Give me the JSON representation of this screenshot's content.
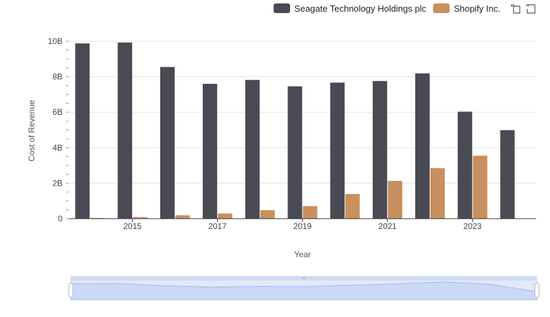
{
  "legend": {
    "items": [
      {
        "label": "Seagate Technology Holdings plc",
        "color": "#4a4a55"
      },
      {
        "label": "Shopify Inc.",
        "color": "#c8905e"
      }
    ],
    "tools": [
      "zoom-select-icon",
      "restore-icon"
    ]
  },
  "chart_data": {
    "type": "bar",
    "title": "",
    "xlabel": "Year",
    "ylabel": "Cost of Revenue",
    "categories": [
      "2014",
      "2015",
      "2016",
      "2017",
      "2018",
      "2019",
      "2020",
      "2021",
      "2022",
      "2023",
      "2024"
    ],
    "x_tick_labels": [
      "2015",
      "2017",
      "2019",
      "2021",
      "2023"
    ],
    "y_tick_labels": [
      "0",
      "2B",
      "4B",
      "6B",
      "8B",
      "10B"
    ],
    "y_ticks": [
      0,
      2000000000,
      4000000000,
      6000000000,
      8000000000,
      10000000000
    ],
    "ylim": [
      0,
      10000000000
    ],
    "series": [
      {
        "name": "Seagate Technology Holdings plc",
        "color": "#4a4a55",
        "values": [
          9880000000,
          9930000000,
          8550000000,
          7600000000,
          7820000000,
          7460000000,
          7670000000,
          7760000000,
          8190000000,
          6030000000,
          4990000000
        ]
      },
      {
        "name": "Shopify Inc.",
        "color": "#c8905e",
        "values": [
          40000000,
          90000000,
          190000000,
          290000000,
          480000000,
          710000000,
          1390000000,
          2130000000,
          2850000000,
          3550000000,
          null
        ]
      }
    ]
  }
}
